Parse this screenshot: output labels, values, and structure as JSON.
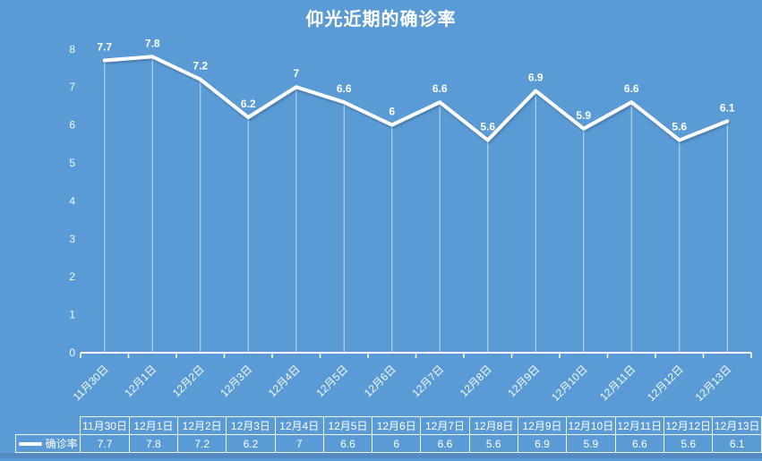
{
  "title": "仰光近期的确诊率",
  "colors": {
    "background": "#5B9BD5",
    "series_line": "#FFFFFF",
    "text": "#FFFFFF",
    "drop_line": "rgba(255,255,255,0.65)",
    "table_border": "rgba(255,255,255,0.9)"
  },
  "chart_data": {
    "type": "line",
    "title": "仰光近期的确诊率",
    "categories": [
      "11月30日",
      "12月1日",
      "12月2日",
      "12月3日",
      "12月4日",
      "12月5日",
      "12月6日",
      "12月7日",
      "12月8日",
      "12月9日",
      "12月10日",
      "12月11日",
      "12月12日",
      "12月13日"
    ],
    "series": [
      {
        "name": "确诊率",
        "values": [
          7.7,
          7.8,
          7.2,
          6.2,
          7,
          6.6,
          6,
          6.6,
          5.6,
          6.9,
          5.9,
          6.6,
          5.6,
          6.1
        ]
      }
    ],
    "value_labels": [
      "7.7",
      "7.8",
      "7.2",
      "6.2",
      "7",
      "6.6",
      "6",
      "6.6",
      "5.6",
      "6.9",
      "5.9",
      "6.6",
      "5.6",
      "6.1"
    ],
    "xlabel": "",
    "ylabel": "",
    "ylim": [
      0,
      8
    ],
    "ytick_labels": [
      "0",
      "1",
      "2",
      "3",
      "4",
      "5",
      "6",
      "7",
      "8"
    ],
    "grid": false,
    "data_labels": true,
    "legend_position": "bottom-table-left"
  },
  "table": {
    "legend_label": "确诊率",
    "headers": [
      "11月30日",
      "12月1日",
      "12月2日",
      "12月3日",
      "12月4日",
      "12月5日",
      "12月6日",
      "12月7日",
      "12月8日",
      "12月9日",
      "12月10日",
      "12月11日",
      "12月12日",
      "12月13日"
    ],
    "values": [
      "7.7",
      "7.8",
      "7.2",
      "6.2",
      "7",
      "6.6",
      "6",
      "6.6",
      "5.6",
      "6.9",
      "5.9",
      "6.6",
      "5.6",
      "6.1"
    ]
  }
}
